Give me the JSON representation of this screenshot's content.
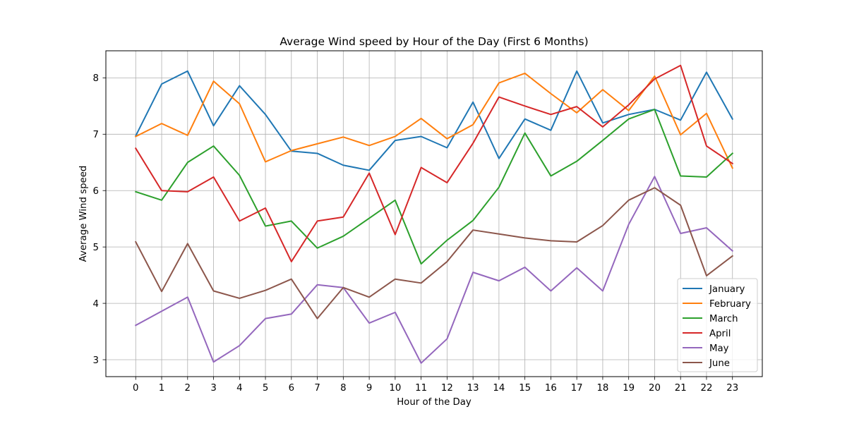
{
  "chart_data": {
    "type": "line",
    "title": "Average Wind speed by Hour of the Day (First 6 Months)",
    "xlabel": "Hour of the Day",
    "ylabel": "Average Wind speed",
    "x": [
      0,
      1,
      2,
      3,
      4,
      5,
      6,
      7,
      8,
      9,
      10,
      11,
      12,
      13,
      14,
      15,
      16,
      17,
      18,
      19,
      20,
      21,
      22,
      23
    ],
    "x_ticks": [
      "0",
      "1",
      "2",
      "3",
      "4",
      "5",
      "6",
      "7",
      "8",
      "9",
      "10",
      "11",
      "12",
      "13",
      "14",
      "15",
      "16",
      "17",
      "18",
      "19",
      "20",
      "21",
      "22",
      "23"
    ],
    "xlim": [
      -1.15,
      24.15
    ],
    "ylim": [
      2.7,
      8.48
    ],
    "y_ticks": [
      3,
      4,
      5,
      6,
      7,
      8
    ],
    "grid": true,
    "legend_position": "bottom-right",
    "series": [
      {
        "name": "January",
        "color": "#1f77b4",
        "values": [
          6.97,
          7.89,
          8.12,
          7.15,
          7.86,
          7.35,
          6.7,
          6.66,
          6.45,
          6.36,
          6.89,
          6.96,
          6.76,
          7.57,
          6.57,
          7.27,
          7.07,
          8.12,
          7.2,
          7.35,
          7.44,
          7.25,
          8.1,
          7.27
        ]
      },
      {
        "name": "February",
        "color": "#ff7f0e",
        "values": [
          6.96,
          7.19,
          6.98,
          7.94,
          7.54,
          6.51,
          6.71,
          6.83,
          6.95,
          6.8,
          6.96,
          7.28,
          6.92,
          7.17,
          7.91,
          8.08,
          7.72,
          7.38,
          7.79,
          7.42,
          8.03,
          6.99,
          7.37,
          6.4
        ]
      },
      {
        "name": "March",
        "color": "#2ca02c",
        "values": [
          5.98,
          5.83,
          6.5,
          6.79,
          6.27,
          5.37,
          5.46,
          4.98,
          5.19,
          5.51,
          5.83,
          4.7,
          5.12,
          5.47,
          6.06,
          7.02,
          6.26,
          6.52,
          6.89,
          7.27,
          7.44,
          6.26,
          6.24,
          6.66
        ]
      },
      {
        "name": "April",
        "color": "#d62728",
        "values": [
          6.75,
          6.0,
          5.98,
          6.24,
          5.46,
          5.69,
          4.74,
          5.46,
          5.53,
          6.31,
          5.22,
          6.41,
          6.14,
          6.84,
          7.66,
          7.5,
          7.35,
          7.49,
          7.13,
          7.52,
          7.98,
          8.22,
          6.79,
          6.48
        ]
      },
      {
        "name": "May",
        "color": "#9467bd",
        "values": [
          3.61,
          3.86,
          4.11,
          2.96,
          3.25,
          3.73,
          3.81,
          4.33,
          4.28,
          3.65,
          3.84,
          2.94,
          3.37,
          4.55,
          4.4,
          4.64,
          4.22,
          4.63,
          4.22,
          5.4,
          6.25,
          5.24,
          5.34,
          4.93
        ]
      },
      {
        "name": "June",
        "color": "#8c564b",
        "values": [
          5.09,
          4.21,
          5.06,
          4.22,
          4.09,
          4.23,
          4.43,
          3.73,
          4.28,
          4.11,
          4.43,
          4.36,
          4.74,
          5.3,
          5.23,
          5.16,
          5.11,
          5.09,
          5.38,
          5.83,
          6.05,
          5.74,
          4.49,
          4.84
        ]
      }
    ]
  }
}
